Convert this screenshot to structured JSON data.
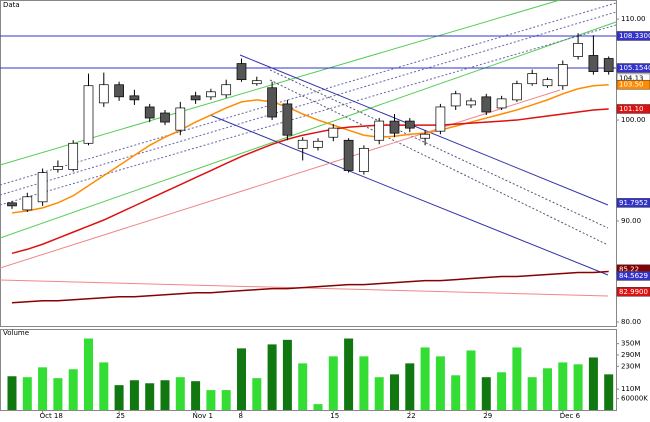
{
  "chart_data": [
    {
      "type": "candlestick",
      "title": "Data",
      "open": [
        91.8,
        91.1,
        91.9,
        95.1,
        95.1,
        97.7,
        101.7,
        103.5,
        102.4,
        101.3,
        100.7,
        99.0,
        102.4,
        102.3,
        102.5,
        105.6,
        103.6,
        103.2,
        101.6,
        97.2,
        97.3,
        98.3,
        98.0,
        94.9,
        98.0,
        99.9,
        99.9,
        98.2,
        98.9,
        101.4,
        101.5,
        102.3,
        101.2,
        102.0,
        103.6,
        103.4,
        103.4,
        106.3,
        106.4,
        106.1
      ],
      "high": [
        92.0,
        92.8,
        95.2,
        96.0,
        98.0,
        104.6,
        104.7,
        103.8,
        103.0,
        101.6,
        101.0,
        101.8,
        102.8,
        103.1,
        104.0,
        106.1,
        104.3,
        103.8,
        102.0,
        98.3,
        98.2,
        99.6,
        98.2,
        97.5,
        100.2,
        100.6,
        100.2,
        99.0,
        101.6,
        102.9,
        102.2,
        102.6,
        102.4,
        103.9,
        105.0,
        104.2,
        105.9,
        108.6,
        108.4,
        106.3
      ],
      "low": [
        91.2,
        90.9,
        91.5,
        94.8,
        94.9,
        97.5,
        101.3,
        101.9,
        101.5,
        99.8,
        99.5,
        98.5,
        101.6,
        102.0,
        102.2,
        103.8,
        103.4,
        100.0,
        98.0,
        96.0,
        97.0,
        97.9,
        94.8,
        94.6,
        97.6,
        98.3,
        98.8,
        97.5,
        98.6,
        101.0,
        101.2,
        100.5,
        101.0,
        101.8,
        103.4,
        103.2,
        103.0,
        106.0,
        104.5,
        104.5
      ],
      "close": [
        91.5,
        92.4,
        94.8,
        95.4,
        97.7,
        103.4,
        103.5,
        102.3,
        102.0,
        100.2,
        99.8,
        101.2,
        102.0,
        102.8,
        103.5,
        104.0,
        103.9,
        100.3,
        98.5,
        98.0,
        97.9,
        99.2,
        95.0,
        97.2,
        99.9,
        98.7,
        99.2,
        98.6,
        101.3,
        102.6,
        101.9,
        100.8,
        102.1,
        103.6,
        104.6,
        104.0,
        105.5,
        107.6,
        104.8,
        104.8
      ],
      "up_color": "#ffffff",
      "down_color": "#555555",
      "series": [
        {
          "color": "#ff8c00",
          "values": [
            90.8,
            91.0,
            91.3,
            91.8,
            92.5,
            93.5,
            94.5,
            95.5,
            96.5,
            97.5,
            98.3,
            99.0,
            99.8,
            100.5,
            101.2,
            101.8,
            102.0,
            101.8,
            101.3,
            100.6,
            100.0,
            99.5,
            99.0,
            98.5,
            98.3,
            98.4,
            98.6,
            98.7,
            99.0,
            99.4,
            99.8,
            100.2,
            100.6,
            101.0,
            101.5,
            102.0,
            102.6,
            103.1,
            103.4,
            103.5
          ]
        },
        {
          "color": "#dd1111",
          "values": [
            86.8,
            87.2,
            87.7,
            88.3,
            88.9,
            89.5,
            90.1,
            90.8,
            91.5,
            92.2,
            92.9,
            93.6,
            94.3,
            95.0,
            95.7,
            96.4,
            97.0,
            97.6,
            98.1,
            98.5,
            98.8,
            99.1,
            99.3,
            99.4,
            99.5,
            99.5,
            99.5,
            99.5,
            99.5,
            99.6,
            99.7,
            99.8,
            99.9,
            100.0,
            100.2,
            100.4,
            100.6,
            100.8,
            101.0,
            101.1
          ]
        },
        {
          "color": "#880000",
          "values": [
            81.9,
            82.0,
            82.1,
            82.1,
            82.2,
            82.3,
            82.4,
            82.5,
            82.5,
            82.6,
            82.7,
            82.8,
            82.9,
            82.9,
            83.0,
            83.1,
            83.2,
            83.3,
            83.3,
            83.4,
            83.5,
            83.6,
            83.7,
            83.7,
            83.8,
            83.9,
            84.0,
            84.1,
            84.1,
            84.2,
            84.3,
            84.4,
            84.5,
            84.5,
            84.6,
            84.7,
            84.8,
            84.9,
            84.9,
            85.0
          ]
        }
      ],
      "ylim": [
        79.7,
        111.1
      ],
      "yticks": [
        {
          "value": 80,
          "label": "80.00"
        },
        {
          "value": 90,
          "label": "90.00"
        },
        {
          "value": 100,
          "label": "100.00"
        },
        {
          "value": 110,
          "label": "110.00"
        }
      ],
      "price_tags": [
        {
          "value": 108.33,
          "label": "108.3300",
          "color": "#3333cc",
          "line": true
        },
        {
          "value": 105.154,
          "label": "105.1540",
          "color": "#3333cc",
          "line": true
        },
        {
          "value": 104.13,
          "label": "104.13",
          "color": "#ffffff"
        },
        {
          "value": 103.5,
          "label": "103.50",
          "color": "#ff8c00"
        },
        {
          "value": 101.1,
          "label": "101.10",
          "color": "#dd1111"
        },
        {
          "value": 91.7952,
          "label": "91.7952",
          "color": "#3333cc"
        },
        {
          "value": 85.22,
          "label": "85.22",
          "color": "#880000"
        },
        {
          "value": 84.5629,
          "label": "84.5629",
          "color": "#3333cc"
        },
        {
          "value": 82.99,
          "label": "82.9900",
          "color": "#dd1111"
        }
      ],
      "grid": false
    },
    {
      "type": "bar",
      "title": "Volume",
      "categories": [
        null,
        null,
        "Oct 18",
        null,
        null,
        null,
        null,
        "25",
        null,
        null,
        null,
        null,
        "Nov 1",
        null,
        null,
        "8",
        null,
        null,
        null,
        null,
        null,
        "15",
        null,
        null,
        null,
        null,
        "22",
        null,
        null,
        null,
        null,
        "29",
        null,
        null,
        null,
        null,
        "Dec 6",
        null,
        null,
        null
      ],
      "values": [
        178,
        173,
        225,
        168,
        215,
        377,
        251,
        131,
        157,
        141,
        157,
        173,
        152,
        105,
        105,
        325,
        168,
        346,
        370,
        246,
        31,
        283,
        377,
        283,
        173,
        188,
        246,
        330,
        283,
        183,
        314,
        173,
        199,
        330,
        173,
        220,
        251,
        241,
        277,
        188
      ],
      "up_color": "#33dd33",
      "down_color": "#117711",
      "ylim": [
        0,
        385
      ],
      "yticks": [
        {
          "value": 60,
          "label": "60000K"
        },
        {
          "value": 110,
          "label": "110M"
        },
        {
          "value": 230,
          "label": "230M"
        },
        {
          "value": 290,
          "label": "290M"
        },
        {
          "value": 350,
          "label": "350M"
        }
      ],
      "grid": false
    }
  ]
}
